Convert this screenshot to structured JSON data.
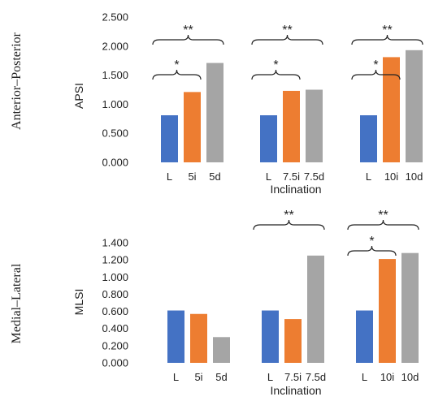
{
  "chart_data": [
    {
      "type": "bar",
      "row_label": "Anterior–Posterior",
      "ylabel": "APSI",
      "xlabel": "Inclination",
      "ylim": [
        0,
        2.5
      ],
      "yticks": [
        "0.000",
        "0.500",
        "1.000",
        "1.500",
        "2.000",
        "2.500"
      ],
      "grid": false,
      "colors": [
        "#4472C4",
        "#ED7D31",
        "#A5A5A5"
      ],
      "groups": [
        {
          "categories": [
            "L",
            "5i",
            "5d"
          ],
          "values": [
            0.81,
            1.21,
            1.71
          ],
          "annotations": [
            {
              "from": 0,
              "to": 1,
              "label": "*"
            },
            {
              "from": 0,
              "to": 2,
              "label": "**"
            }
          ]
        },
        {
          "categories": [
            "L",
            "7.5i",
            "7.5d"
          ],
          "values": [
            0.81,
            1.23,
            1.25
          ],
          "annotations": [
            {
              "from": 0,
              "to": 1,
              "label": "*"
            },
            {
              "from": 0,
              "to": 2,
              "label": "**"
            }
          ]
        },
        {
          "categories": [
            "L",
            "10i",
            "10d"
          ],
          "values": [
            0.81,
            1.81,
            1.93
          ],
          "annotations": [
            {
              "from": 0,
              "to": 1,
              "label": "*"
            },
            {
              "from": 0,
              "to": 2,
              "label": "**"
            }
          ]
        }
      ]
    },
    {
      "type": "bar",
      "row_label": "Medial–Lateral",
      "ylabel": "MLSI",
      "xlabel": "Inclination",
      "ylim": [
        0,
        1.4
      ],
      "yticks": [
        "0.000",
        "0.200",
        "0.400",
        "0.600",
        "0.800",
        "1.000",
        "1.200",
        "1.400"
      ],
      "grid": false,
      "colors": [
        "#4472C4",
        "#ED7D31",
        "#A5A5A5"
      ],
      "groups": [
        {
          "categories": [
            "L",
            "5i",
            "5d"
          ],
          "values": [
            0.61,
            0.57,
            0.3
          ],
          "annotations": []
        },
        {
          "categories": [
            "L",
            "7.5i",
            "7.5d"
          ],
          "values": [
            0.61,
            0.51,
            1.25
          ],
          "annotations": [
            {
              "from": 0,
              "to": 2,
              "label": "**"
            }
          ]
        },
        {
          "categories": [
            "L",
            "10i",
            "10d"
          ],
          "values": [
            0.61,
            1.21,
            1.28
          ],
          "annotations": [
            {
              "from": 0,
              "to": 1,
              "label": "*"
            },
            {
              "from": 0,
              "to": 2,
              "label": "**"
            }
          ]
        }
      ]
    }
  ]
}
